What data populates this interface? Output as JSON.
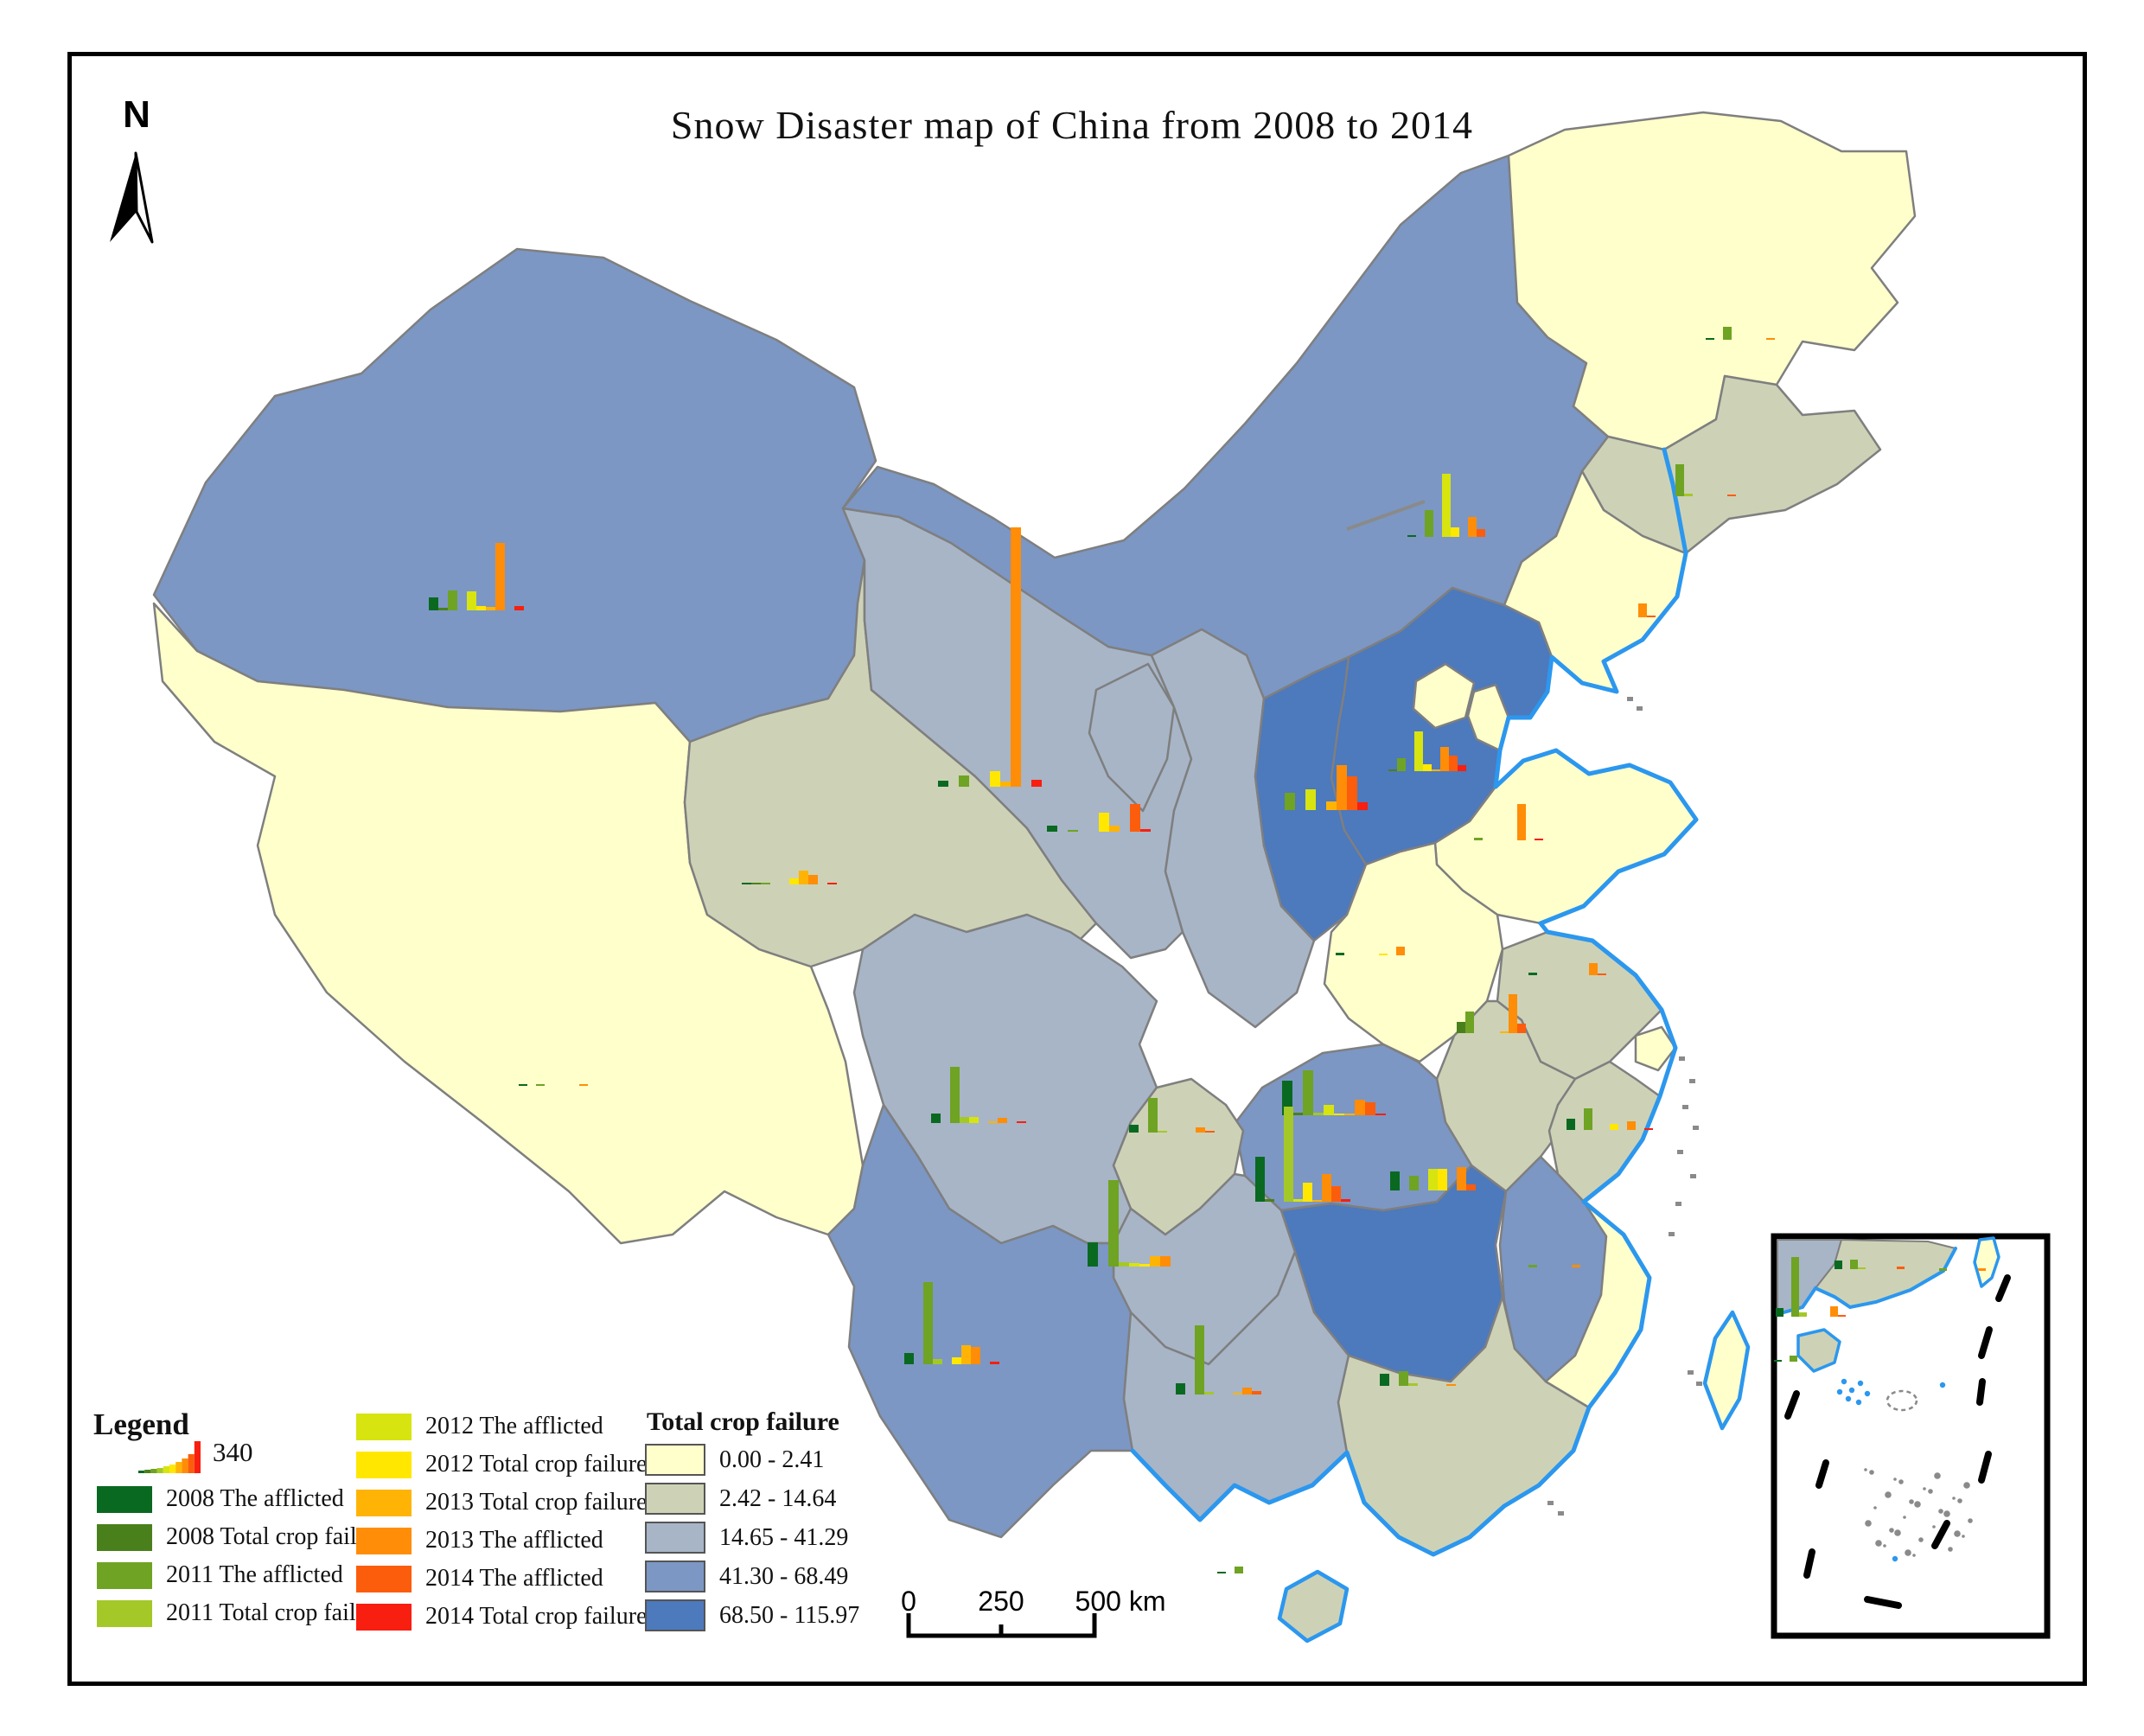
{
  "title": "Snow Disaster map of China from 2008 to 2014",
  "north_label": "N",
  "legend": {
    "title": "Legend",
    "reference_value": "340",
    "reference_bars": [
      3,
      4,
      5,
      6,
      8,
      10,
      13,
      17,
      22,
      37
    ],
    "series": [
      {
        "id": "2008_afflicted",
        "label": "2008 The afflicted",
        "color": "#0A6921",
        "col": 1
      },
      {
        "id": "2008_total",
        "label": "2008 Total crop failure",
        "color": "#4A801C",
        "col": 1
      },
      {
        "id": "2011_afflicted",
        "label": "2011 The afflicted",
        "color": "#6FA323",
        "col": 1
      },
      {
        "id": "2011_total",
        "label": "2011 Total crop failure",
        "color": "#A4C828",
        "col": 1
      },
      {
        "id": "2012_afflicted",
        "label": "2012 The afflicted",
        "color": "#D7E410",
        "col": 2
      },
      {
        "id": "2012_total",
        "label": "2012 Total crop failure",
        "color": "#FFE700",
        "col": 2
      },
      {
        "id": "2013_total",
        "label": "2013 Total crop failure",
        "color": "#FFB405",
        "col": 2
      },
      {
        "id": "2013_afflicted",
        "label": "2013 The afflicted",
        "color": "#FF8D07",
        "col": 2
      },
      {
        "id": "2014_afflicted",
        "label": "2014 The afflicted",
        "color": "#FC5D0D",
        "col": 2
      },
      {
        "id": "2014_total",
        "label": "2014 Total crop failure",
        "color": "#F81E10",
        "col": 2
      }
    ]
  },
  "choropleth": {
    "title": "Total crop failure",
    "classes": [
      {
        "label": "0.00 - 2.41",
        "color": "#FFFFCC"
      },
      {
        "label": "2.42 - 14.64",
        "color": "#CDD2B6"
      },
      {
        "label": "14.65 - 41.29",
        "color": "#A7B5C7"
      },
      {
        "label": "41.30 - 68.49",
        "color": "#7C97C4"
      },
      {
        "label": "68.50 - 115.97",
        "color": "#4D79BD"
      }
    ]
  },
  "scalebar": {
    "t0": "0",
    "t1": "250",
    "t2": "500 km"
  },
  "map": {
    "province_border_color": "#7f7f7f",
    "coast_color": "#2C97EE",
    "frame_color": "#000000"
  },
  "provinces": [
    {
      "id": "xinjiang",
      "cls": 4
    },
    {
      "id": "tibet",
      "cls": 1
    },
    {
      "id": "qinghai",
      "cls": 2
    },
    {
      "id": "gansu",
      "cls": 3
    },
    {
      "id": "ningxia",
      "cls": 3
    },
    {
      "id": "shaanxi",
      "cls": 3
    },
    {
      "id": "shanxi",
      "cls": 5
    },
    {
      "id": "inner_mongolia",
      "cls": 4
    },
    {
      "id": "heilongjiang",
      "cls": 1
    },
    {
      "id": "jilin",
      "cls": 2
    },
    {
      "id": "liaoning",
      "cls": 1
    },
    {
      "id": "hebei",
      "cls": 5
    },
    {
      "id": "beijing",
      "cls": 1
    },
    {
      "id": "tianjin",
      "cls": 1
    },
    {
      "id": "shandong",
      "cls": 1
    },
    {
      "id": "henan",
      "cls": 1
    },
    {
      "id": "jiangsu",
      "cls": 2
    },
    {
      "id": "anhui",
      "cls": 2
    },
    {
      "id": "shanghai",
      "cls": 1
    },
    {
      "id": "zhejiang",
      "cls": 2
    },
    {
      "id": "hubei",
      "cls": 4
    },
    {
      "id": "chongqing",
      "cls": 2
    },
    {
      "id": "sichuan",
      "cls": 3
    },
    {
      "id": "guizhou",
      "cls": 3
    },
    {
      "id": "hunan",
      "cls": 5
    },
    {
      "id": "jiangxi",
      "cls": 4
    },
    {
      "id": "yunnan",
      "cls": 4
    },
    {
      "id": "guangxi",
      "cls": 3
    },
    {
      "id": "guangdong",
      "cls": 2
    },
    {
      "id": "hainan",
      "cls": 2
    },
    {
      "id": "fujian",
      "cls": 1
    },
    {
      "id": "taiwan",
      "cls": 1
    },
    {
      "id": "inset_guangxi",
      "cls": 3
    },
    {
      "id": "inset_guangdong",
      "cls": 2
    },
    {
      "id": "inset_hainan",
      "cls": 2
    },
    {
      "id": "inset_taiwan",
      "cls": 1
    }
  ],
  "chart_data": {
    "type": "bar",
    "title": "Per-province snow disaster bar charts (afflicted / total crop failure by year)",
    "series_order": [
      "2008_afflicted",
      "2008_total",
      "2011_afflicted",
      "2011_total",
      "2012_afflicted",
      "2012_total",
      "2013_total",
      "2013_afflicted",
      "2014_afflicted",
      "2014_total"
    ],
    "legend_reference": {
      "label": "340"
    },
    "value_note": "values are bar heights in on-screen pixels, estimated from the image; legend reference bar is labelled 340",
    "provinces": [
      {
        "id": "xinjiang",
        "x": 496,
        "base": 706,
        "w": 11,
        "bars": [
          15,
          3,
          23,
          0,
          22,
          5,
          4,
          78,
          0,
          5
        ]
      },
      {
        "id": "inner_mongolia",
        "x": 1628,
        "base": 621,
        "w": 10,
        "bars": [
          2,
          0,
          31,
          0,
          73,
          11,
          0,
          23,
          9,
          0
        ]
      },
      {
        "id": "heilongjiang",
        "x": 1973,
        "base": 393,
        "w": 10,
        "bars": [
          2,
          0,
          15,
          0,
          0,
          0,
          0,
          2,
          0,
          0
        ]
      },
      {
        "id": "jilin",
        "x": 1918,
        "base": 574,
        "w": 10,
        "bars": [
          0,
          0,
          37,
          3,
          0,
          0,
          0,
          0,
          2,
          0
        ]
      },
      {
        "id": "liaoning",
        "x": 1825,
        "base": 714,
        "w": 10,
        "bars": [
          0,
          0,
          0,
          0,
          0,
          0,
          0,
          16,
          2,
          0
        ]
      },
      {
        "id": "hebei",
        "x": 1596,
        "base": 892,
        "w": 10,
        "bars": [
          0,
          2,
          15,
          0,
          46,
          8,
          2,
          28,
          18,
          7
        ]
      },
      {
        "id": "shanxi",
        "x": 1462,
        "base": 937,
        "w": 12,
        "bars": [
          0,
          0,
          20,
          0,
          24,
          0,
          10,
          52,
          39,
          9
        ]
      },
      {
        "id": "shandong",
        "x": 1685,
        "base": 972,
        "w": 10,
        "bars": [
          0,
          0,
          3,
          0,
          0,
          0,
          0,
          42,
          0,
          2
        ]
      },
      {
        "id": "henan",
        "x": 1545,
        "base": 1105,
        "w": 10,
        "bars": [
          3,
          0,
          0,
          0,
          0,
          2,
          0,
          10,
          0,
          0
        ]
      },
      {
        "id": "jiangsu",
        "x": 1768,
        "base": 1128,
        "w": 10,
        "bars": [
          3,
          0,
          0,
          0,
          0,
          0,
          0,
          14,
          2,
          0
        ]
      },
      {
        "id": "anhui",
        "x": 1675,
        "base": 1195,
        "w": 10,
        "bars": [
          0,
          13,
          25,
          0,
          0,
          0,
          2,
          45,
          11,
          0
        ]
      },
      {
        "id": "hubei",
        "x": 1483,
        "base": 1290,
        "w": 12,
        "bars": [
          40,
          3,
          52,
          3,
          12,
          2,
          2,
          18,
          15,
          2
        ]
      },
      {
        "id": "hunan",
        "x": 1452,
        "base": 1390,
        "w": 11,
        "bars": [
          52,
          3,
          0,
          110,
          3,
          22,
          2,
          32,
          18,
          3
        ]
      },
      {
        "id": "jiangxi",
        "x": 1608,
        "base": 1377,
        "w": 11,
        "bars": [
          22,
          0,
          17,
          0,
          25,
          25,
          0,
          27,
          7,
          0
        ]
      },
      {
        "id": "chongqing",
        "x": 1306,
        "base": 1310,
        "w": 11,
        "bars": [
          9,
          0,
          40,
          2,
          0,
          0,
          0,
          6,
          2,
          0
        ]
      },
      {
        "id": "sichuan",
        "x": 1077,
        "base": 1299,
        "w": 11,
        "bars": [
          11,
          0,
          65,
          7,
          7,
          0,
          2,
          6,
          0,
          2
        ]
      },
      {
        "id": "guizhou",
        "x": 1258,
        "base": 1465,
        "w": 12,
        "bars": [
          28,
          0,
          100,
          5,
          4,
          3,
          12,
          12,
          0,
          0
        ]
      },
      {
        "id": "yunnan",
        "x": 1046,
        "base": 1578,
        "w": 11,
        "bars": [
          13,
          0,
          95,
          6,
          0,
          8,
          22,
          20,
          0,
          3
        ]
      },
      {
        "id": "guangxi",
        "x": 1360,
        "base": 1613,
        "w": 11,
        "bars": [
          13,
          0,
          80,
          3,
          0,
          0,
          2,
          8,
          4,
          0
        ]
      },
      {
        "id": "guangdong",
        "x": 1596,
        "base": 1603,
        "w": 11,
        "bars": [
          14,
          0,
          17,
          3,
          0,
          0,
          0,
          2,
          0,
          0
        ]
      },
      {
        "id": "hainan",
        "x": 1408,
        "base": 1820,
        "w": 10,
        "bars": [
          2,
          0,
          8,
          0,
          0,
          0,
          0,
          0,
          0,
          0
        ]
      },
      {
        "id": "fujian",
        "x": 1748,
        "base": 1466,
        "w": 10,
        "bars": [
          0,
          0,
          3,
          0,
          0,
          0,
          0,
          3,
          0,
          0
        ]
      },
      {
        "id": "zhejiang",
        "x": 1812,
        "base": 1307,
        "w": 10,
        "bars": [
          13,
          0,
          25,
          0,
          0,
          7,
          0,
          10,
          0,
          2
        ]
      },
      {
        "id": "qinghai",
        "x": 858,
        "base": 1023,
        "w": 11,
        "bars": [
          2,
          2,
          2,
          0,
          0,
          7,
          16,
          11,
          0,
          2
        ]
      },
      {
        "id": "gansu",
        "x": 1085,
        "base": 910,
        "w": 12,
        "bars": [
          7,
          0,
          13,
          0,
          0,
          18,
          6,
          300,
          0,
          8
        ]
      },
      {
        "id": "ningxia",
        "x": 1211,
        "base": 962,
        "w": 12,
        "bars": [
          7,
          0,
          2,
          0,
          0,
          22,
          7,
          0,
          32,
          3
        ]
      },
      {
        "id": "tibet",
        "x": 600,
        "base": 1256,
        "w": 10,
        "bars": [
          2,
          0,
          2,
          0,
          0,
          0,
          0,
          2,
          0,
          0
        ]
      },
      {
        "id": "inset_guangxi",
        "x": 2054,
        "base": 1523,
        "w": 9,
        "bars": [
          10,
          0,
          69,
          5,
          0,
          0,
          0,
          12,
          2,
          0
        ]
      },
      {
        "id": "inset_guangdong",
        "x": 2122,
        "base": 1468,
        "w": 9,
        "bars": [
          10,
          0,
          11,
          2,
          0,
          0,
          0,
          0,
          3,
          0
        ]
      },
      {
        "id": "inset_taiwan_area",
        "x": 2225,
        "base": 1470,
        "w": 9,
        "bars": [
          0,
          0,
          3,
          0,
          0,
          0,
          0,
          3,
          0,
          0
        ]
      },
      {
        "id": "inset_hainan",
        "x": 2052,
        "base": 1575,
        "w": 9,
        "bars": [
          2,
          0,
          7,
          0,
          0,
          0,
          0,
          0,
          0,
          0
        ]
      }
    ]
  }
}
